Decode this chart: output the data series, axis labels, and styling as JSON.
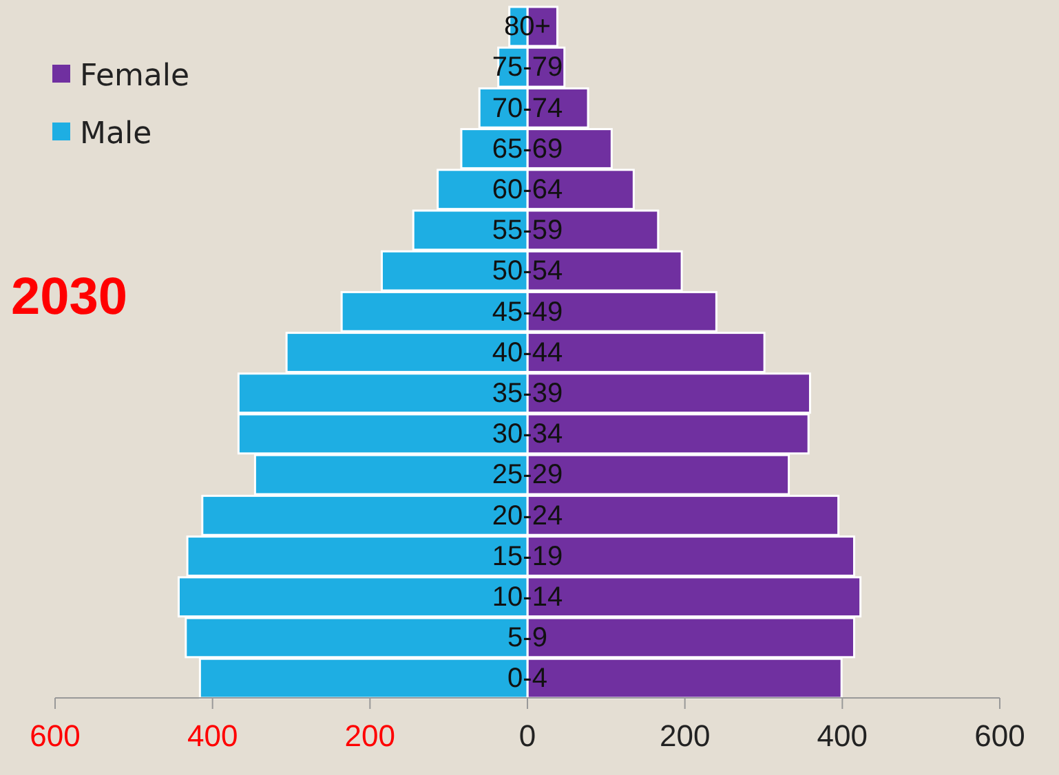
{
  "chart_data": {
    "type": "bar",
    "orientation": "horizontal",
    "title": "2030",
    "categories": [
      "80+",
      "75-79",
      "70-74",
      "65-69",
      "60-64",
      "55-59",
      "50-54",
      "45-49",
      "40-44",
      "35-39",
      "30-34",
      "25-29",
      "20-24",
      "15-19",
      "10-14",
      "5-9",
      "0-4"
    ],
    "series": [
      {
        "name": "Female",
        "color": "#7030a0",
        "values": [
          38,
          47,
          77,
          107,
          135,
          166,
          196,
          240,
          301,
          359,
          357,
          332,
          395,
          415,
          423,
          415,
          399
        ]
      },
      {
        "name": "Male",
        "color": "#1eaee3",
        "values": [
          -23,
          -37,
          -61,
          -84,
          -114,
          -145,
          -185,
          -236,
          -306,
          -367,
          -367,
          -346,
          -413,
          -432,
          -443,
          -434,
          -416
        ]
      }
    ],
    "xlim": [
      -600,
      600
    ],
    "xticks": [
      {
        "value": -600,
        "label": "600"
      },
      {
        "value": -400,
        "label": "400"
      },
      {
        "value": -200,
        "label": "200"
      },
      0,
      200,
      400,
      600
    ],
    "legend": "top left",
    "grid": false,
    "stacked": true
  }
}
